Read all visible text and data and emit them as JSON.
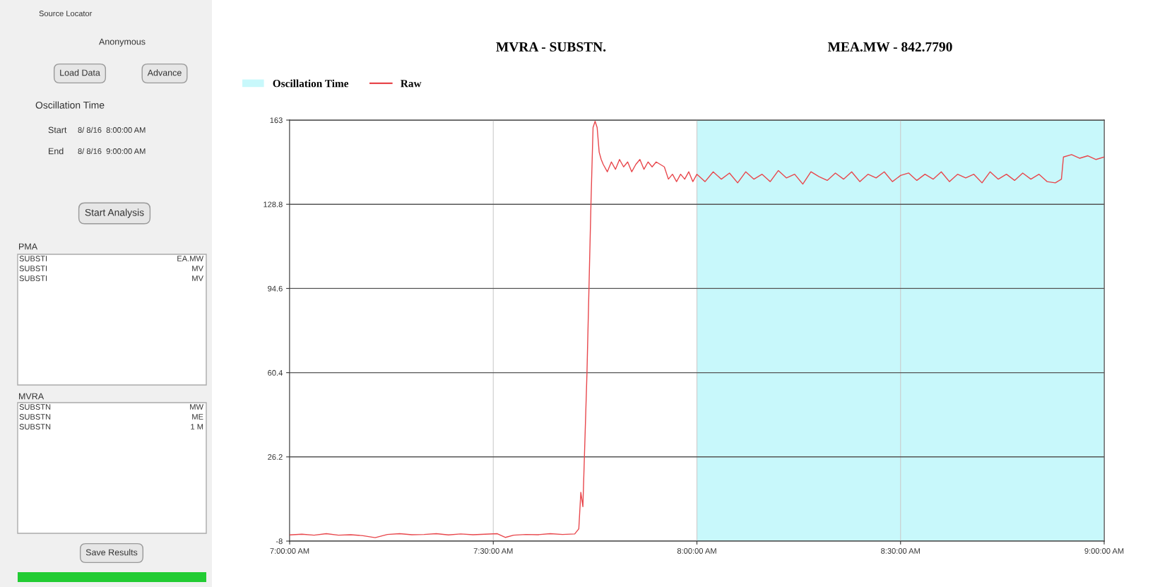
{
  "chart_data": {
    "type": "line",
    "title": "MVRA - SUBSTN.",
    "subtitle": "MEA.MW - 842.7790",
    "x": [
      7.0,
      7.03,
      7.06,
      7.09,
      7.12,
      7.15,
      7.18,
      7.21,
      7.24,
      7.27,
      7.3,
      7.33,
      7.36,
      7.39,
      7.42,
      7.45,
      7.48,
      7.51,
      7.53,
      7.55,
      7.58,
      7.61,
      7.64,
      7.67,
      7.7,
      7.71,
      7.715,
      7.72,
      7.73,
      7.74,
      7.745,
      7.75,
      7.755,
      7.76,
      7.765,
      7.77,
      7.78,
      7.79,
      7.8,
      7.81,
      7.82,
      7.83,
      7.84,
      7.85,
      7.86,
      7.87,
      7.88,
      7.89,
      7.9,
      7.91,
      7.92,
      7.93,
      7.94,
      7.95,
      7.96,
      7.97,
      7.98,
      7.99,
      8.0,
      8.02,
      8.04,
      8.06,
      8.08,
      8.1,
      8.12,
      8.14,
      8.16,
      8.18,
      8.2,
      8.22,
      8.24,
      8.26,
      8.28,
      8.3,
      8.32,
      8.34,
      8.36,
      8.38,
      8.4,
      8.42,
      8.44,
      8.46,
      8.48,
      8.5,
      8.52,
      8.54,
      8.56,
      8.58,
      8.6,
      8.62,
      8.64,
      8.66,
      8.68,
      8.7,
      8.72,
      8.74,
      8.76,
      8.78,
      8.8,
      8.82,
      8.84,
      8.86,
      8.88,
      8.895,
      8.9,
      8.92,
      8.94,
      8.96,
      8.98,
      9.0
    ],
    "series": [
      {
        "name": "Raw",
        "color": "#e8474c",
        "values": [
          -5.5,
          -5.2,
          -5.6,
          -5.0,
          -5.6,
          -5.4,
          -5.8,
          -6.6,
          -5.3,
          -5.0,
          -5.4,
          -5.3,
          -5.0,
          -5.5,
          -5.1,
          -5.4,
          -5.2,
          -5.0,
          -6.5,
          -5.6,
          -5.3,
          -5.4,
          -5.0,
          -5.3,
          -5.1,
          -3,
          11.8,
          6,
          60,
          130,
          160,
          162.5,
          160,
          150,
          147,
          145,
          142,
          146,
          143,
          147,
          144,
          146,
          142,
          145,
          147,
          143,
          146,
          144,
          146,
          145,
          144,
          139,
          141,
          138,
          141,
          139,
          142,
          138,
          141,
          138,
          142,
          139,
          141.5,
          137.5,
          142,
          139,
          141,
          138,
          142.5,
          139.5,
          141,
          137,
          142,
          140,
          138.5,
          141.5,
          139,
          142,
          138,
          141,
          139.5,
          142,
          138,
          140.5,
          141.5,
          138.5,
          141,
          139,
          142,
          138,
          141,
          139.5,
          141,
          137.5,
          142,
          139,
          141,
          138.5,
          141.5,
          139,
          141,
          138,
          137.5,
          139,
          148,
          149,
          147.5,
          148.5,
          147,
          148
        ]
      }
    ],
    "xlim": [
      7,
      9
    ],
    "xticks": [
      {
        "value": 7,
        "label": "7:00:00 AM"
      },
      {
        "value": 7.5,
        "label": "7:30:00 AM"
      },
      {
        "value": 8,
        "label": "8:00:00 AM"
      },
      {
        "value": 8.5,
        "label": "8:30:00 AM"
      },
      {
        "value": 9,
        "label": "9:00:00 AM"
      }
    ],
    "ylim": [
      -8,
      163
    ],
    "yticks": [
      -8,
      26.2,
      60.4,
      94.6,
      128.8,
      163
    ],
    "bands": [
      {
        "axis": "x",
        "from": 8,
        "to": 9,
        "label": "Oscillation Time",
        "color": "#c8f8fb"
      }
    ],
    "grid": true,
    "legend": "top left",
    "marker": "none",
    "line_style": "solid",
    "annotations": [
      "Source Locator",
      "Anonymous",
      "Load Data",
      "Advance",
      "Oscillation Time",
      "Start",
      "8/ 8/16  8:00:00 AM",
      "End",
      "8/ 8/16  9:00:00 AM",
      "Start Analysis",
      "PMA",
      "SUBSTI",
      "EA.MW",
      "SUBSTI",
      "MV",
      "SUBSTI",
      "MV",
      "MVRA",
      "SUBSTN",
      "MW",
      "SUBSTN",
      "ME",
      "SUBSTN",
      "1 M",
      "Save Results"
    ]
  }
}
